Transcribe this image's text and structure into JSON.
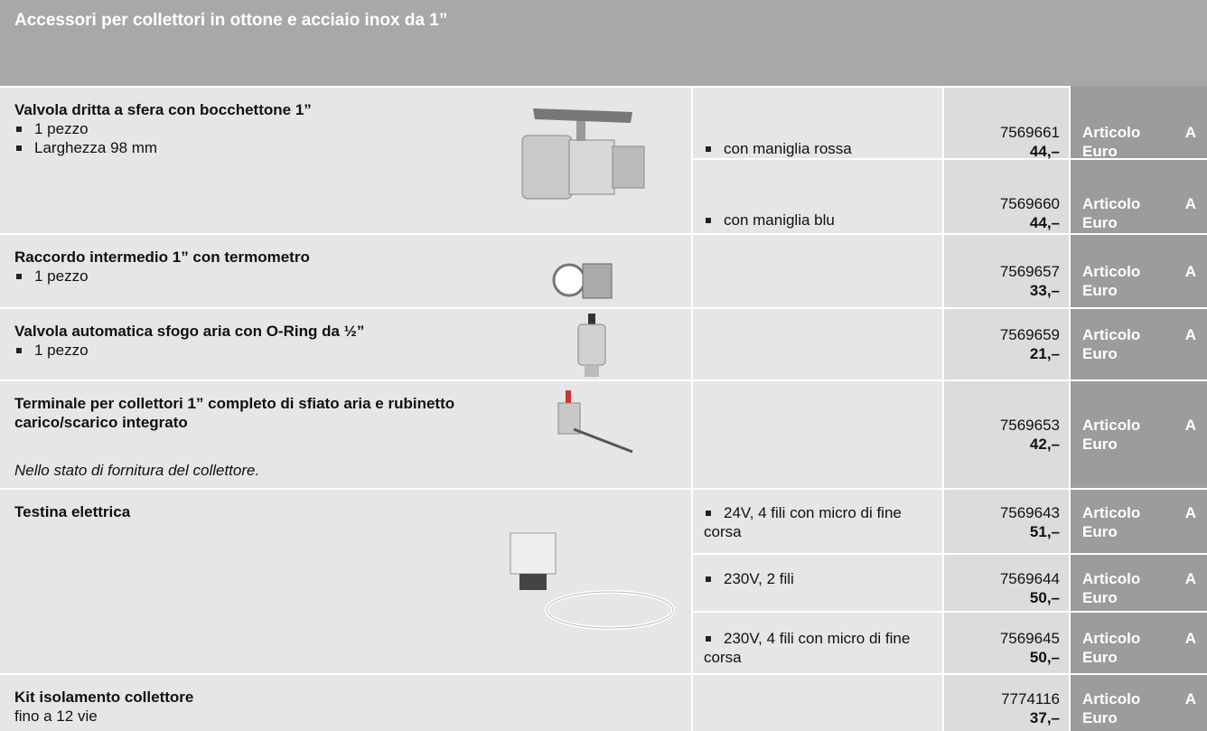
{
  "header": {
    "title": "Accessori per collettori in ottone e acciaio inox da 1”"
  },
  "labels": {
    "article": "Articolo",
    "class": "A",
    "currency": "Euro"
  },
  "rows": [
    {
      "title": "Valvola dritta a sfera con bocchettone 1”",
      "bullets": [
        "1 pezzo",
        "Larghezza 98 mm"
      ],
      "options": [
        {
          "label": "con maniglia rossa",
          "code": "7569661",
          "price": "44,–"
        },
        {
          "label": "con maniglia blu",
          "code": "7569660",
          "price": "44,–"
        }
      ]
    },
    {
      "title": "Raccordo intermedio 1” con termometro",
      "bullets": [
        "1 pezzo"
      ],
      "options": [
        {
          "code": "7569657",
          "price": "33,–"
        }
      ]
    },
    {
      "title": "Valvola automatica sfogo aria con O-Ring da ½”",
      "bullets": [
        "1 pezzo"
      ],
      "options": [
        {
          "code": "7569659",
          "price": "21,–"
        }
      ]
    },
    {
      "title": "Terminale per collettori 1” completo di sfiato aria e rubinetto carico/scarico integrato",
      "note": "Nello stato di fornitura del collettore.",
      "options": [
        {
          "code": "7569653",
          "price": "42,–"
        }
      ]
    },
    {
      "title": "Testina elettrica",
      "options": [
        {
          "label": "24V, 4 fili con micro di fine corsa",
          "code": "7569643",
          "price": "51,–"
        },
        {
          "label": "230V, 2 fili",
          "code": "7569644",
          "price": "50,–"
        },
        {
          "label": "230V, 4 fili con micro di fine corsa",
          "code": "7569645",
          "price": "50,–"
        }
      ]
    },
    {
      "title": "Kit isolamento collettore",
      "subtitle": "fino a 12 vie",
      "options": [
        {
          "code": "7774116",
          "price": "37,–"
        }
      ]
    }
  ]
}
